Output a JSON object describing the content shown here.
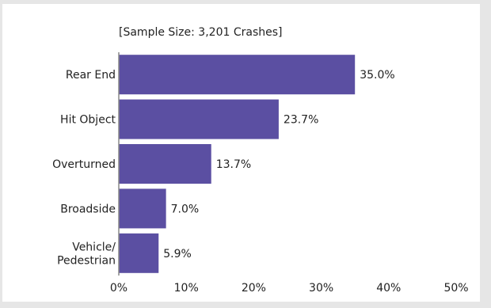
{
  "chart_data": {
    "type": "bar",
    "orientation": "horizontal",
    "title": "",
    "subtitle": "[Sample Size: 3,201 Crashes]",
    "categories": [
      "Rear End",
      "Hit Object",
      "Overturned",
      "Broadside",
      "Vehicle/ Pedestrian"
    ],
    "category_lines": [
      [
        "Rear End"
      ],
      [
        "Hit Object"
      ],
      [
        "Overturned"
      ],
      [
        "Broadside"
      ],
      [
        "Vehicle/",
        "Pedestrian"
      ]
    ],
    "values": [
      35.0,
      23.7,
      13.7,
      7.0,
      5.9
    ],
    "data_labels": [
      "35.0%",
      "23.7%",
      "13.7%",
      "7.0%",
      "5.9%"
    ],
    "xlim": [
      0,
      50
    ],
    "x_ticks": [
      0,
      10,
      20,
      30,
      40,
      50
    ],
    "x_tick_labels": [
      "0%",
      "10%",
      "20%",
      "30%",
      "40%",
      "50%"
    ],
    "xlabel": "",
    "ylabel": "",
    "grid": false,
    "legend": "none",
    "bar_color": "#5b4fa2"
  }
}
